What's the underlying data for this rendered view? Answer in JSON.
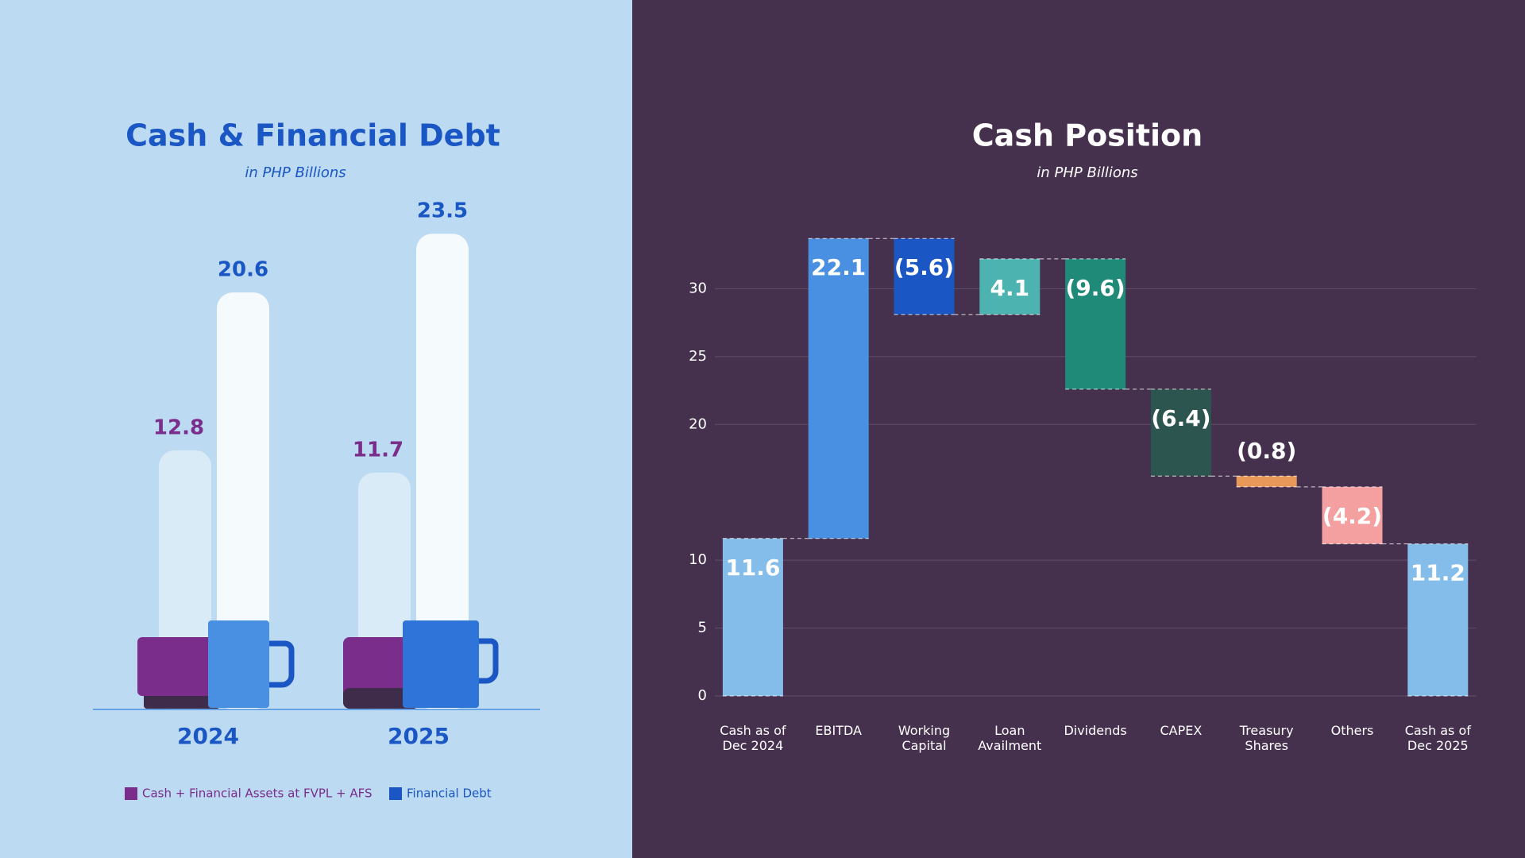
{
  "chart_data": [
    {
      "type": "steam-bar",
      "title": "Cash & Financial Debt",
      "subtitle": "in PHP Billions",
      "categories": [
        "2024",
        "2025"
      ],
      "series": [
        {
          "name": "Cash + Financial Assets at FVPL + AFS",
          "color": "#7b2d8b",
          "values": [
            12.8,
            11.7
          ]
        },
        {
          "name": "Financial Debt",
          "color": "#1a56c4",
          "values": [
            20.6,
            23.5
          ]
        }
      ],
      "ylim": [
        0,
        25
      ]
    },
    {
      "type": "waterfall",
      "title": "Cash Position",
      "subtitle": "in PHP Billions",
      "categories": [
        "Cash as of Dec 2024",
        "EBITDA",
        "Working Capital",
        "Loan Availment",
        "Dividends",
        "CAPEX",
        "Treasury Shares",
        "Others",
        "Cash as of Dec 2025"
      ],
      "values": [
        11.6,
        22.1,
        -5.6,
        4.1,
        -9.6,
        -6.4,
        -0.8,
        -4.2,
        11.2
      ],
      "value_labels": [
        "11.6",
        "22.1",
        "(5.6)",
        "4.1",
        "(9.6)",
        "(6.4)",
        "(0.8)",
        "(4.2)",
        "11.2"
      ],
      "is_total": [
        true,
        false,
        false,
        false,
        false,
        false,
        false,
        false,
        true
      ],
      "colors": [
        "#85bdea",
        "#4a90e2",
        "#1a56c4",
        "#4db3b0",
        "#1f8a78",
        "#2d5550",
        "#e8995a",
        "#f5a0a0",
        "#85bdea"
      ],
      "ylim": [
        0,
        35
      ],
      "yticks": [
        0,
        5,
        10,
        20,
        25,
        30
      ],
      "grid": true
    }
  ]
}
